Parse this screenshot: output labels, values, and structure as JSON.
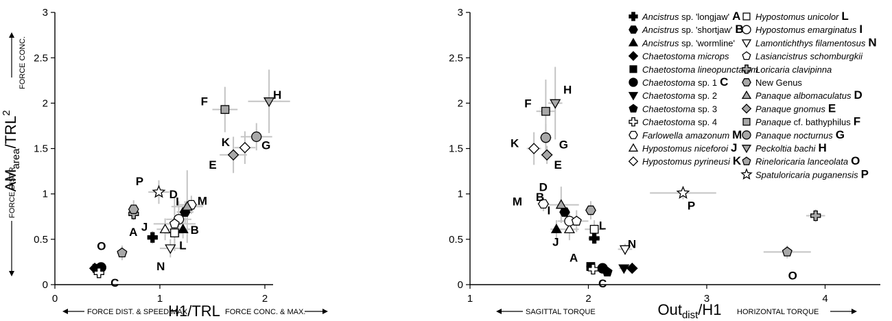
{
  "species": [
    {
      "id": "A",
      "name_it": "Ancistrus",
      "name_rest": " sp. 'longjaw'",
      "letter": "A",
      "shape": "cross",
      "fill": "#000000",
      "p1": [
        0.93,
        0.52
      ],
      "p2": [
        2.05,
        0.51
      ]
    },
    {
      "id": "B",
      "name_it": "Ancistrus",
      "name_rest": " sp. 'shortjaw'",
      "letter": "B",
      "shape": "hexagon",
      "fill": "#000000",
      "p1": [
        1.24,
        0.8
      ],
      "p2": [
        1.8,
        0.8
      ]
    },
    {
      "id": "wormline",
      "name_it": "Ancistrus",
      "name_rest": " sp. 'wormline'",
      "letter": "",
      "shape": "triangle",
      "fill": "#000000",
      "p1": [
        1.22,
        0.61
      ],
      "p2": [
        1.73,
        0.61
      ]
    },
    {
      "id": "microps",
      "name_it": "Chaetostoma microps",
      "name_rest": "",
      "letter": "",
      "shape": "diamond",
      "fill": "#000000",
      "p1": [
        0.38,
        0.18
      ],
      "p2": [
        2.37,
        0.18
      ]
    },
    {
      "id": "lineop",
      "name_it": "Chaetostoma lineopunctatum",
      "name_rest": "",
      "letter": "",
      "shape": "square",
      "fill": "#000000",
      "p1": [
        0.4,
        0.18
      ],
      "p2": [
        2.02,
        0.2
      ]
    },
    {
      "id": "C",
      "name_it": "Chaetostoma",
      "name_rest": " sp. 1",
      "letter": "C",
      "shape": "circle",
      "fill": "#000000",
      "p1": [
        0.44,
        0.19
      ],
      "p2": [
        2.12,
        0.18
      ]
    },
    {
      "id": "sp2",
      "name_it": "Chaetostoma",
      "name_rest": " sp. 2",
      "letter": "",
      "shape": "invtriangle",
      "fill": "#000000",
      "p1": [
        0.42,
        0.17
      ],
      "p2": [
        2.3,
        0.18
      ]
    },
    {
      "id": "sp3",
      "name_it": "Chaetostoma",
      "name_rest": " sp. 3",
      "letter": "",
      "shape": "pentagon",
      "fill": "#000000",
      "p1": [
        0.41,
        0.16
      ],
      "p2": [
        2.16,
        0.14
      ]
    },
    {
      "id": "sp4",
      "name_it": "Chaetostoma",
      "name_rest": " sp. 4",
      "letter": "",
      "shape": "cross",
      "fill": "#ffffff",
      "p1": [
        0.42,
        0.13
      ],
      "p2": [
        2.04,
        0.17
      ]
    },
    {
      "id": "M",
      "name_it": "Farlowella amazonum",
      "name_rest": "",
      "letter": "M",
      "shape": "hexagon",
      "fill": "#ffffff",
      "p1": [
        1.3,
        0.88
      ],
      "p2": [
        1.62,
        0.89
      ]
    },
    {
      "id": "J",
      "name_it": "Hypostomus niceforoi",
      "name_rest": "",
      "letter": "J",
      "shape": "triangle",
      "fill": "#ffffff",
      "p1": [
        1.05,
        0.61
      ],
      "p2": [
        1.84,
        0.61
      ]
    },
    {
      "id": "K",
      "name_it": "Hypostomus pyrineusi",
      "name_rest": "",
      "letter": "K",
      "shape": "diamond",
      "fill": "#ffffff",
      "p1": [
        1.81,
        1.51
      ],
      "p2": [
        1.54,
        1.5
      ]
    },
    {
      "id": "L",
      "name_it": "Hypostomus unicolor",
      "name_rest": "",
      "letter": "L",
      "shape": "square",
      "fill": "#ffffff",
      "p1": [
        1.14,
        0.57
      ],
      "p2": [
        2.05,
        0.61
      ]
    },
    {
      "id": "I",
      "name_it": "Hypostomus emarginatus",
      "name_rest": "",
      "letter": "I",
      "shape": "circle",
      "fill": "#ffffff",
      "p1": [
        1.18,
        0.72
      ],
      "p2": [
        1.84,
        0.7
      ]
    },
    {
      "id": "N",
      "name_it": "Lamontichthys filamentosus",
      "name_rest": "",
      "letter": "N",
      "shape": "invtriangle",
      "fill": "#ffffff",
      "p1": [
        1.1,
        0.4
      ],
      "p2": [
        2.31,
        0.39
      ]
    },
    {
      "id": "lasi",
      "name_it": "Lasiancistrus schomburgkii",
      "name_rest": "",
      "letter": "",
      "shape": "pentagon",
      "fill": "#ffffff",
      "p1": [
        1.14,
        0.67
      ],
      "p2": [
        1.9,
        0.7
      ]
    },
    {
      "id": "lori",
      "name_it": "Loricaria clavipinna",
      "name_rest": "",
      "letter": "",
      "shape": "cross",
      "fill": "#a8a8a8",
      "p1": [
        0.75,
        0.78
      ],
      "p2": [
        3.92,
        0.76
      ]
    },
    {
      "id": "newgenus",
      "name_it": "",
      "name_rest": "New Genus",
      "letter": "",
      "shape": "hexagon",
      "fill": "#a8a8a8",
      "p1": [
        0.75,
        0.83
      ],
      "p2": [
        2.02,
        0.82
      ]
    },
    {
      "id": "D",
      "name_it": "Panaque albomaculatus",
      "name_rest": "",
      "letter": "D",
      "shape": "triangle",
      "fill": "#a8a8a8",
      "p1": [
        1.26,
        0.86
      ],
      "p2": [
        1.77,
        0.88
      ]
    },
    {
      "id": "E",
      "name_it": "Panaque gnomus",
      "name_rest": "",
      "letter": "E",
      "shape": "diamond",
      "fill": "#a8a8a8",
      "p1": [
        1.7,
        1.43
      ],
      "p2": [
        1.65,
        1.43
      ]
    },
    {
      "id": "F",
      "name_it": "Panaque",
      "name_rest": " cf. bathyphilus",
      "letter": "F",
      "shape": "square",
      "fill": "#a8a8a8",
      "p1": [
        1.62,
        1.93
      ],
      "p2": [
        1.64,
        1.91
      ]
    },
    {
      "id": "G",
      "name_it": "Panaque nocturnus",
      "name_rest": "",
      "letter": "G",
      "shape": "circle",
      "fill": "#a8a8a8",
      "p1": [
        1.92,
        1.63
      ],
      "p2": [
        1.64,
        1.62
      ]
    },
    {
      "id": "H",
      "name_it": "Peckoltia bachi",
      "name_rest": "",
      "letter": "H",
      "shape": "invtriangle",
      "fill": "#a8a8a8",
      "p1": [
        2.04,
        2.02
      ],
      "p2": [
        1.72,
        2.0
      ]
    },
    {
      "id": "O",
      "name_it": "Rineloricaria lanceolata",
      "name_rest": "",
      "letter": "O",
      "shape": "pentagon",
      "fill": "#a8a8a8",
      "p1": [
        0.64,
        0.35
      ],
      "p2": [
        3.68,
        0.36
      ]
    },
    {
      "id": "P",
      "name_it": "Spatuloricaria puganensis",
      "name_rest": "",
      "letter": "P",
      "shape": "star",
      "fill": "#ffffff",
      "p1": [
        0.99,
        1.02
      ],
      "p2": [
        2.8,
        1.01
      ]
    }
  ],
  "chart_data": [
    {
      "type": "scatter",
      "xlabel": "H1/TRL",
      "ylabel_main": "AM",
      "ylabel_sub": "area",
      "ylabel_rest": "/TRL",
      "ylabel_sup": "2",
      "xlim": [
        0,
        2.35
      ],
      "ylim": [
        0,
        3
      ],
      "xticks": [
        "0",
        "1",
        "2"
      ],
      "yticks": [
        "0",
        "0.5",
        "1",
        "1.5",
        "2",
        "2.5",
        "3"
      ],
      "x_note_left": "FORCE DIST. & SPEED MAX.",
      "x_note_right": "FORCE CONC. & MAX.",
      "y_note_bottom": "FORCE DISTR.",
      "y_note_top": "FORCE CONC."
    },
    {
      "type": "scatter",
      "xlabel_main": "Out",
      "xlabel_sub": "dist",
      "xlabel_rest": "/H1",
      "xlim": [
        1,
        4.5
      ],
      "ylim": [
        0,
        3
      ],
      "xticks": [
        "1",
        "2",
        "3",
        "4"
      ],
      "yticks": [
        "0",
        "0.5",
        "1",
        "1.5",
        "2",
        "2.5",
        "3"
      ],
      "x_note_left": "SAGITTAL TORQUE",
      "x_note_right": "HORIZONTAL TORQUE"
    }
  ]
}
